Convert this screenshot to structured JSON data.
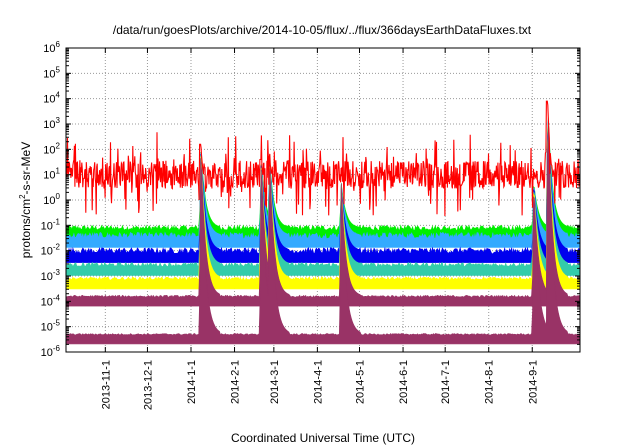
{
  "chart_data": {
    "type": "line",
    "title": "/data/run/goesPlots/archive/2014-10-05/flux/../flux/366daysEarthDataFluxes.txt",
    "xlabel": "Coordinated Universal Time (UTC)",
    "ylabel": {
      "prefix": "protons/cm",
      "sup": "2",
      "suffix": "-s-sr-MeV"
    },
    "x_start": "2013-10-04",
    "x_end": "2014-10-05",
    "xlim": [
      "2013-10-04",
      "2014-10-05"
    ],
    "ylim": [
      1e-06,
      1000000.0
    ],
    "yscale": "log",
    "grid": true,
    "legend": "none",
    "x_ticks": [
      {
        "date": "2013-11-01",
        "label": "2013-11-1"
      },
      {
        "date": "2013-12-01",
        "label": "2013-12-1"
      },
      {
        "date": "2014-01-01",
        "label": "2014-1-1"
      },
      {
        "date": "2014-02-01",
        "label": "2014-2-1"
      },
      {
        "date": "2014-03-01",
        "label": "2014-3-1"
      },
      {
        "date": "2014-04-01",
        "label": "2014-4-1"
      },
      {
        "date": "2014-05-01",
        "label": "2014-5-1"
      },
      {
        "date": "2014-06-01",
        "label": "2014-6-1"
      },
      {
        "date": "2014-07-01",
        "label": "2014-7-1"
      },
      {
        "date": "2014-08-01",
        "label": "2014-8-1"
      },
      {
        "date": "2014-09-01",
        "label": "2014-9-1"
      }
    ],
    "y_ticks": [
      {
        "exp": -6,
        "base": "10",
        "power": "-6"
      },
      {
        "exp": -5,
        "base": "10",
        "power": "-5"
      },
      {
        "exp": -4,
        "base": "10",
        "power": "-4"
      },
      {
        "exp": -3,
        "base": "10",
        "power": "-3"
      },
      {
        "exp": -2,
        "base": "10",
        "power": "-2"
      },
      {
        "exp": -1,
        "base": "10",
        "power": "-1"
      },
      {
        "exp": 0,
        "base": "10",
        "power": "0"
      },
      {
        "exp": 1,
        "base": "10",
        "power": "1"
      },
      {
        "exp": 2,
        "base": "10",
        "power": "2"
      },
      {
        "exp": 3,
        "base": "10",
        "power": "3"
      },
      {
        "exp": 4,
        "base": "10",
        "power": "4"
      },
      {
        "exp": 5,
        "base": "10",
        "power": "5"
      },
      {
        "exp": 6,
        "base": "10",
        "power": "6"
      }
    ],
    "events": [
      {
        "date": "2014-01-08",
        "peak_log": 2.2
      },
      {
        "date": "2014-02-20",
        "peak_log": 1.6
      },
      {
        "date": "2014-02-26",
        "peak_log": 1.7
      },
      {
        "date": "2014-04-18",
        "peak_log": 0.7
      },
      {
        "date": "2014-09-02",
        "peak_log": 0.8
      },
      {
        "date": "2014-09-12",
        "peak_log": 3.9
      }
    ],
    "series": [
      {
        "color": "#ff0000",
        "baseline_log": 1.0,
        "noise_log": 0.5
      },
      {
        "color": "#00ee00",
        "baseline_log": -1.1,
        "noise_log": 0.1
      },
      {
        "color": "#33aaff",
        "baseline_log": -1.4,
        "noise_log": 0.12
      },
      {
        "color": "#0000ee",
        "baseline_log": -2.0,
        "noise_log": 0.12
      },
      {
        "color": "#33ccaa",
        "baseline_log": -2.55,
        "noise_log": 0.08
      },
      {
        "color": "#ffff00",
        "baseline_log": -3.1,
        "noise_log": 0.06
      },
      {
        "color": "#993366",
        "baseline_log": -3.8,
        "noise_log": 0.04
      },
      {
        "color": "#993366",
        "baseline_log": -5.3,
        "noise_log": 0.03
      }
    ]
  }
}
